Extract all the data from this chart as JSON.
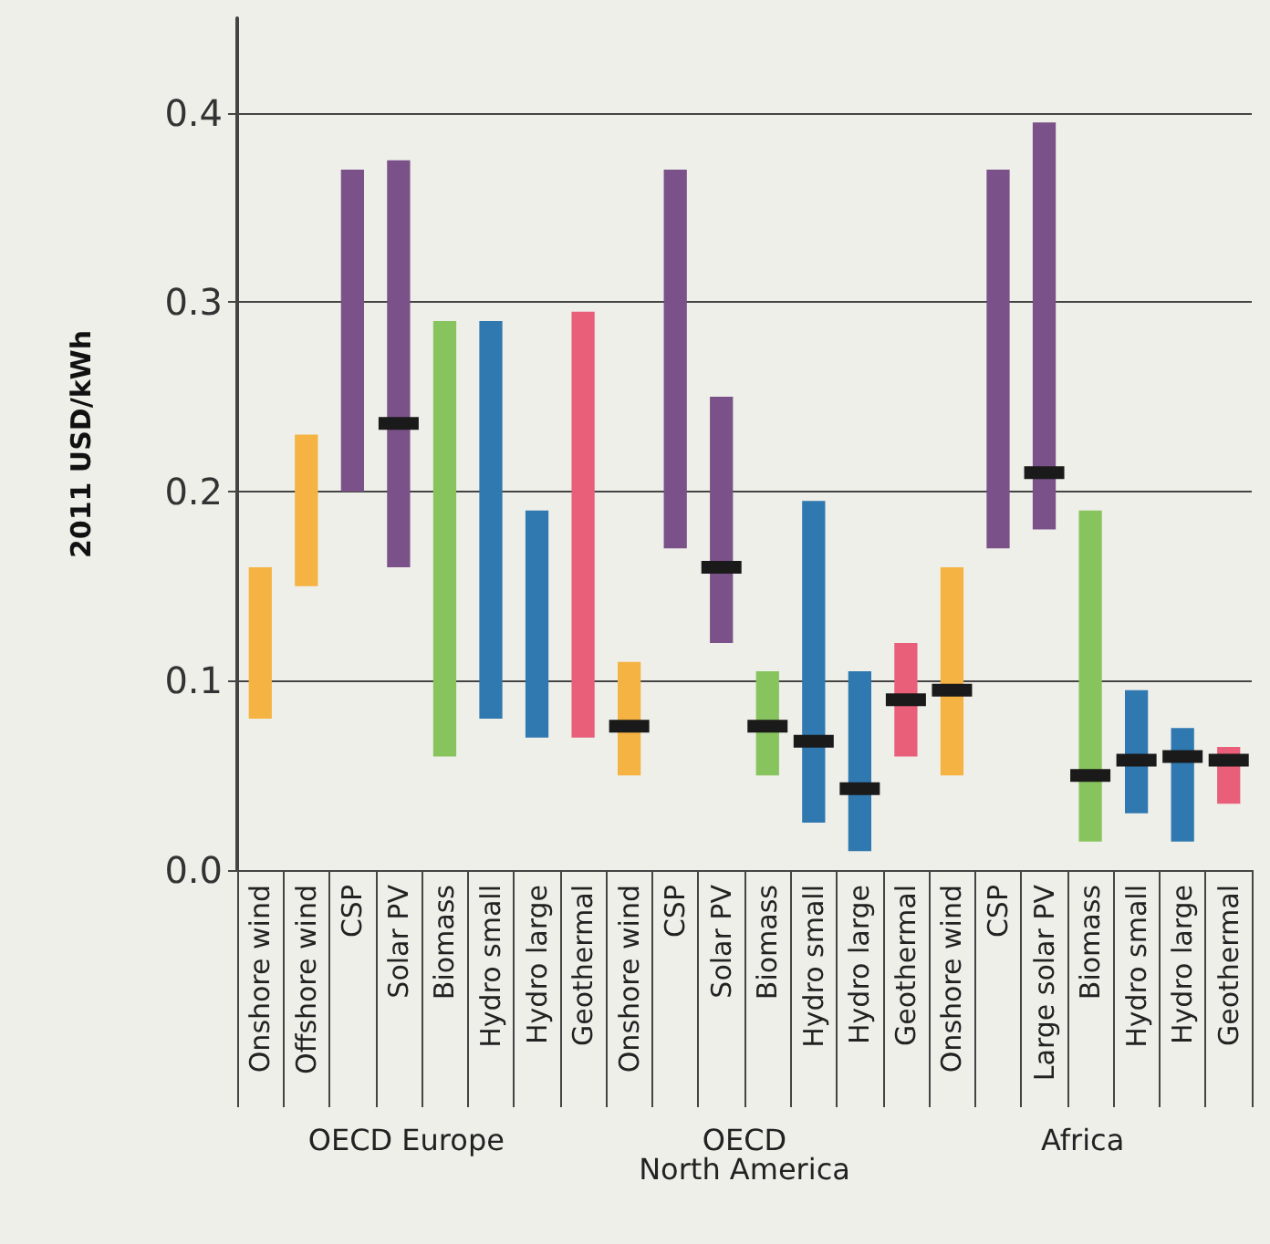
{
  "chart_data": {
    "type": "bar",
    "ylabel": "2011 USD/kWh",
    "categories": [
      "Onshore wind",
      "Offshore wind",
      "CSP",
      "Solar PV",
      "Biomass",
      "Hydro small",
      "Hydro large",
      "Geothermal",
      "Onshore wind",
      "CSP",
      "Solar PV",
      "Biomass",
      "Hydro small",
      "Hydro large",
      "Geothermal",
      "Onshore wind",
      "CSP",
      "Large solar PV",
      "Biomass",
      "Hydro small",
      "Hydro large",
      "Geothermal"
    ],
    "series": [
      {
        "base": [
          0.08,
          0.15,
          0.2,
          0.16,
          0.06,
          0.08,
          0.07,
          0.07,
          0.05,
          0.17,
          0.12,
          0.05,
          0.025,
          0.01,
          0.06,
          0.05,
          0.17,
          0.18,
          0.015,
          0.03,
          0.015,
          0.035
        ],
        "values": [
          0.08,
          0.08,
          0.17,
          0.215,
          0.23,
          0.21,
          0.12,
          0.225,
          0.06,
          0.2,
          0.13,
          0.055,
          0.17,
          0.095,
          0.06,
          0.11,
          0.2,
          0.215,
          0.175,
          0.065,
          0.06,
          0.03
        ],
        "colors": [
          "#f5b343",
          "#f5b343",
          "#7b5189",
          "#7b5189",
          "#88c45e",
          "#3079b0",
          "#3079b0",
          "#e95e78",
          "#f5b343",
          "#7b5189",
          "#7b5189",
          "#88c45e",
          "#3079b0",
          "#3079b0",
          "#e95e78",
          "#f5b343",
          "#7b5189",
          "#7b5189",
          "#88c45e",
          "#3079b0",
          "#3079b0",
          "#e95e78"
        ]
      },
      {
        "type": "scatter",
        "marker": "square",
        "color": "#1a1a1a",
        "values": [
          null,
          null,
          null,
          0.236,
          null,
          null,
          null,
          null,
          0.076,
          null,
          0.16,
          0.076,
          0.068,
          0.043,
          0.09,
          0.095,
          null,
          0.21,
          0.05,
          0.058,
          0.06,
          0.058
        ]
      }
    ],
    "ylim": [
      0,
      0.45
    ],
    "yticks": [
      {
        "value": 0,
        "label": "0.0"
      },
      0.1,
      0.2,
      0.3,
      0.4
    ],
    "grid": "y",
    "annotations": [
      "OECD Europe",
      "OECD\nNorth America",
      "Africa"
    ]
  }
}
